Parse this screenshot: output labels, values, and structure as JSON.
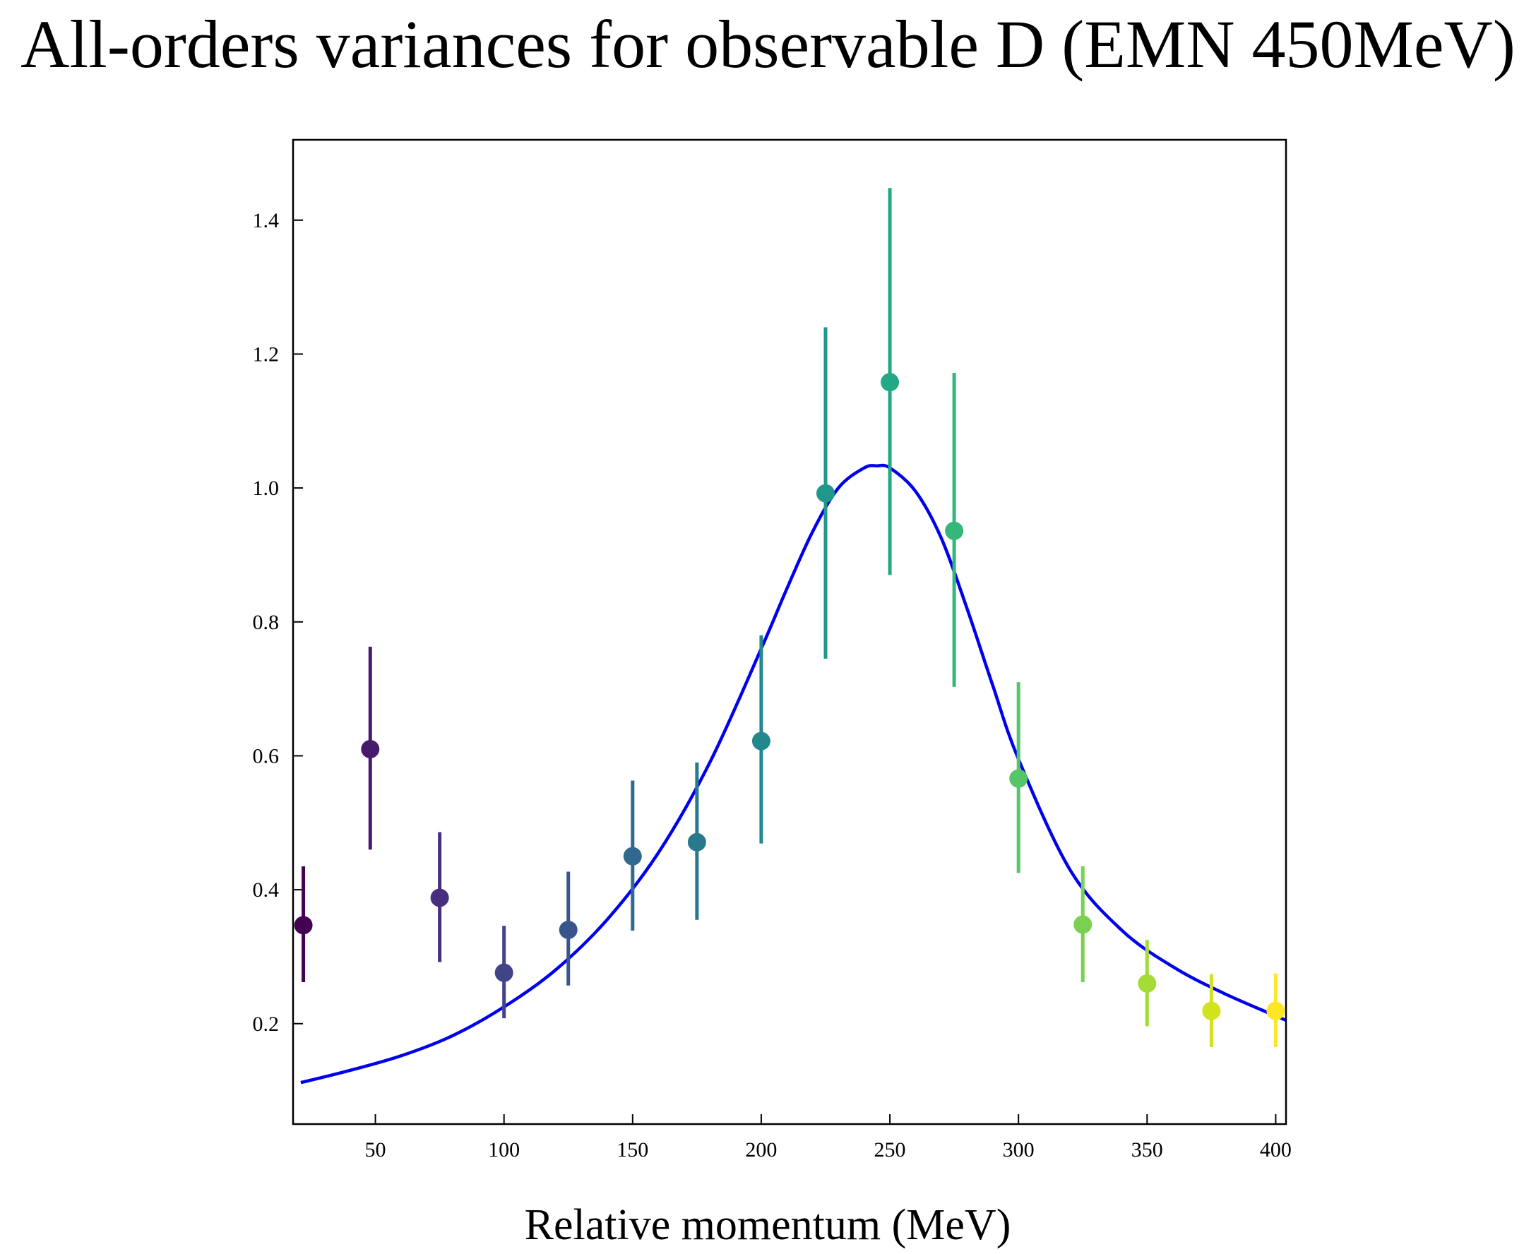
{
  "chart_data": {
    "type": "scatter",
    "title": "All-orders variances for observable D (EMN 450MeV)",
    "xlabel": "Relative momentum (MeV)",
    "ylabel": "",
    "xlim": [
      18,
      404
    ],
    "ylim": [
      0.05,
      1.52
    ],
    "x_ticks": [
      50,
      100,
      150,
      200,
      250,
      300,
      350,
      400
    ],
    "y_ticks": [
      0.2,
      0.4,
      0.6,
      0.8,
      1.0,
      1.2,
      1.4
    ],
    "x_tick_labels": [
      "50",
      "100",
      "150",
      "200",
      "250",
      "300",
      "350",
      "400"
    ],
    "y_tick_labels": [
      "0.2",
      "0.4",
      "0.6",
      "0.8",
      "1.0",
      "1.2",
      "1.4"
    ],
    "grid": false,
    "colormap": "viridis",
    "points": [
      {
        "x": 22,
        "y": 0.347,
        "err_low": 0.262,
        "err_high": 0.435,
        "color": "#440154"
      },
      {
        "x": 48,
        "y": 0.61,
        "err_low": 0.46,
        "err_high": 0.763,
        "color": "#481a6c"
      },
      {
        "x": 75,
        "y": 0.388,
        "err_low": 0.292,
        "err_high": 0.486,
        "color": "#472f7d"
      },
      {
        "x": 100,
        "y": 0.276,
        "err_low": 0.208,
        "err_high": 0.346,
        "color": "#414487"
      },
      {
        "x": 125,
        "y": 0.34,
        "err_low": 0.257,
        "err_high": 0.427,
        "color": "#39568c"
      },
      {
        "x": 150,
        "y": 0.45,
        "err_low": 0.339,
        "err_high": 0.563,
        "color": "#31688e"
      },
      {
        "x": 175,
        "y": 0.471,
        "err_low": 0.355,
        "err_high": 0.59,
        "color": "#2a788e"
      },
      {
        "x": 200,
        "y": 0.622,
        "err_low": 0.469,
        "err_high": 0.78,
        "color": "#23888e"
      },
      {
        "x": 225,
        "y": 0.992,
        "err_low": 0.745,
        "err_high": 1.24,
        "color": "#1f988b"
      },
      {
        "x": 250,
        "y": 1.158,
        "err_low": 0.87,
        "err_high": 1.448,
        "color": "#22a884"
      },
      {
        "x": 275,
        "y": 0.936,
        "err_low": 0.703,
        "err_high": 1.172,
        "color": "#35b779"
      },
      {
        "x": 300,
        "y": 0.566,
        "err_low": 0.425,
        "err_high": 0.71,
        "color": "#54c568"
      },
      {
        "x": 325,
        "y": 0.348,
        "err_low": 0.262,
        "err_high": 0.435,
        "color": "#7ad151"
      },
      {
        "x": 350,
        "y": 0.26,
        "err_low": 0.196,
        "err_high": 0.325,
        "color": "#a5db36"
      },
      {
        "x": 375,
        "y": 0.219,
        "err_low": 0.165,
        "err_high": 0.274,
        "color": "#d2e21b"
      },
      {
        "x": 400,
        "y": 0.219,
        "err_low": 0.165,
        "err_high": 0.275,
        "color": "#fde725"
      }
    ],
    "curve": {
      "color": "#0000ee",
      "x": [
        21,
        40,
        60,
        80,
        100,
        120,
        140,
        160,
        180,
        200,
        210,
        220,
        230,
        240,
        245,
        250,
        260,
        270,
        280,
        290,
        300,
        320,
        340,
        360,
        380,
        404
      ],
      "y": [
        0.112,
        0.13,
        0.152,
        0.182,
        0.225,
        0.28,
        0.355,
        0.455,
        0.59,
        0.76,
        0.85,
        0.935,
        1.0,
        1.03,
        1.033,
        1.03,
        0.995,
        0.925,
        0.82,
        0.705,
        0.595,
        0.43,
        0.34,
        0.285,
        0.245,
        0.205
      ]
    }
  }
}
